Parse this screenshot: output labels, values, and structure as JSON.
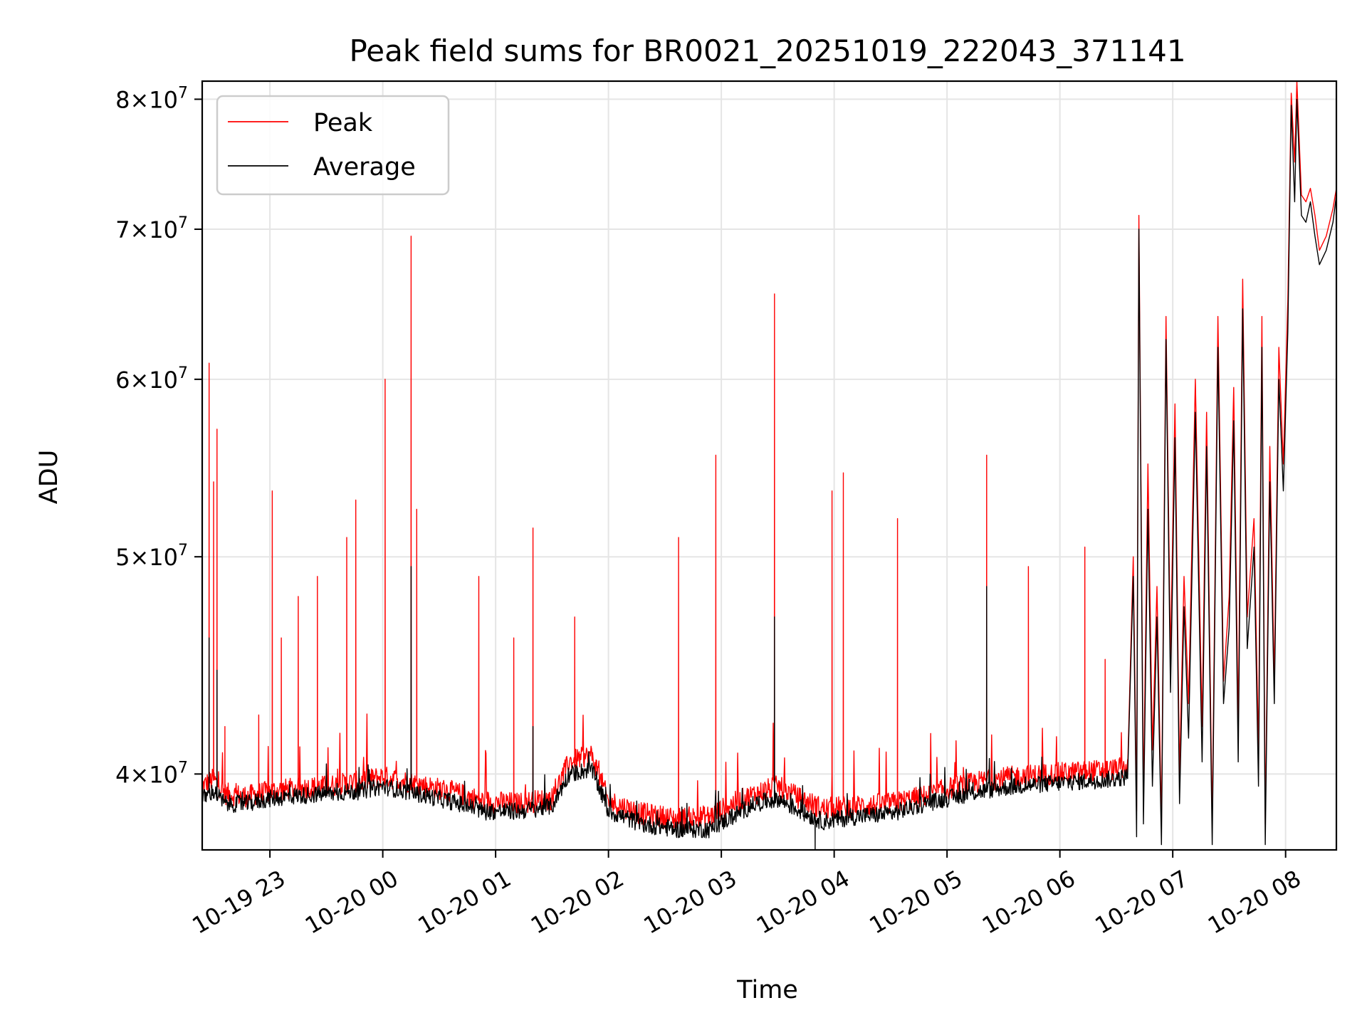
{
  "chart_data": {
    "type": "line",
    "title": "Peak field sums for BR0021_20251019_222043_371141",
    "xlabel": "Time",
    "ylabel": "ADU",
    "yscale": "log",
    "ylim": [
      37000000,
      81500000
    ],
    "xlim_hours": [
      22.4,
      32.45
    ],
    "grid": true,
    "legend_position": "upper-left",
    "x_ticks": [
      {
        "hour": 23,
        "label": "10-19 23"
      },
      {
        "hour": 24,
        "label": "10-20 00"
      },
      {
        "hour": 25,
        "label": "10-20 01"
      },
      {
        "hour": 26,
        "label": "10-20 02"
      },
      {
        "hour": 27,
        "label": "10-20 03"
      },
      {
        "hour": 28,
        "label": "10-20 04"
      },
      {
        "hour": 29,
        "label": "10-20 05"
      },
      {
        "hour": 30,
        "label": "10-20 06"
      },
      {
        "hour": 31,
        "label": "10-20 07"
      },
      {
        "hour": 32,
        "label": "10-20 08"
      }
    ],
    "y_ticks": [
      {
        "value": 40000000,
        "mantissa": "4",
        "exponent": "7"
      },
      {
        "value": 50000000,
        "mantissa": "5",
        "exponent": "7"
      },
      {
        "value": 60000000,
        "mantissa": "6",
        "exponent": "7"
      },
      {
        "value": 70000000,
        "mantissa": "7",
        "exponent": "7"
      },
      {
        "value": 80000000,
        "mantissa": "8",
        "exponent": "7"
      }
    ],
    "series": [
      {
        "name": "Peak",
        "color": "#ff0000",
        "x_hours": [
          22.4,
          22.5,
          22.6,
          22.8,
          23.0,
          23.2,
          23.5,
          23.8,
          24.0,
          24.3,
          24.6,
          24.9,
          25.2,
          25.5,
          25.65,
          25.85,
          26.0,
          26.3,
          26.6,
          26.9,
          27.1,
          27.3,
          27.5,
          27.7,
          27.9,
          28.2,
          28.5,
          28.8,
          29.0,
          29.3,
          29.6,
          29.9,
          30.2,
          30.5,
          30.6
        ],
        "values": [
          39500000,
          39800000,
          39200000,
          39100000,
          39300000,
          39400000,
          39500000,
          39700000,
          39900000,
          39600000,
          39300000,
          38900000,
          38800000,
          39000000,
          40500000,
          40800000,
          38900000,
          38400000,
          38200000,
          38300000,
          38800000,
          39200000,
          39500000,
          39000000,
          38600000,
          38700000,
          38800000,
          39100000,
          39400000,
          39700000,
          39900000,
          40000000,
          40100000,
          40200000,
          40300000
        ],
        "spikes": [
          {
            "x": 22.46,
            "value": 61000000
          },
          {
            "x": 22.5,
            "value": 54000000
          },
          {
            "x": 22.53,
            "value": 57000000
          },
          {
            "x": 22.6,
            "value": 42000000
          },
          {
            "x": 22.9,
            "value": 42500000
          },
          {
            "x": 23.02,
            "value": 53500000
          },
          {
            "x": 23.1,
            "value": 46000000
          },
          {
            "x": 23.25,
            "value": 48000000
          },
          {
            "x": 23.42,
            "value": 49000000
          },
          {
            "x": 23.68,
            "value": 51000000
          },
          {
            "x": 23.76,
            "value": 53000000
          },
          {
            "x": 24.02,
            "value": 60000000
          },
          {
            "x": 24.25,
            "value": 69500000
          },
          {
            "x": 24.3,
            "value": 52500000
          },
          {
            "x": 24.85,
            "value": 49000000
          },
          {
            "x": 25.16,
            "value": 46000000
          },
          {
            "x": 25.33,
            "value": 51500000
          },
          {
            "x": 25.7,
            "value": 47000000
          },
          {
            "x": 26.62,
            "value": 51000000
          },
          {
            "x": 26.95,
            "value": 55500000
          },
          {
            "x": 27.47,
            "value": 65500000
          },
          {
            "x": 27.98,
            "value": 53500000
          },
          {
            "x": 28.08,
            "value": 54500000
          },
          {
            "x": 28.56,
            "value": 52000000
          },
          {
            "x": 29.35,
            "value": 55500000
          },
          {
            "x": 29.72,
            "value": 49500000
          },
          {
            "x": 30.22,
            "value": 50500000
          },
          {
            "x": 30.4,
            "value": 45000000
          }
        ],
        "late": [
          [
            30.6,
            40200000
          ],
          [
            30.65,
            50000000
          ],
          [
            30.68,
            38500000
          ],
          [
            30.7,
            71000000
          ],
          [
            30.74,
            39000000
          ],
          [
            30.78,
            55000000
          ],
          [
            30.82,
            41000000
          ],
          [
            30.86,
            48500000
          ],
          [
            30.9,
            38000000
          ],
          [
            30.94,
            64000000
          ],
          [
            30.98,
            45000000
          ],
          [
            31.02,
            58500000
          ],
          [
            31.06,
            40000000
          ],
          [
            31.1,
            49000000
          ],
          [
            31.14,
            43000000
          ],
          [
            31.2,
            60000000
          ],
          [
            31.26,
            42000000
          ],
          [
            31.3,
            58000000
          ],
          [
            31.35,
            38000000
          ],
          [
            31.4,
            64000000
          ],
          [
            31.45,
            44000000
          ],
          [
            31.5,
            48000000
          ],
          [
            31.54,
            59500000
          ],
          [
            31.58,
            42000000
          ],
          [
            31.62,
            66500000
          ],
          [
            31.66,
            47000000
          ],
          [
            31.72,
            52000000
          ],
          [
            31.76,
            41000000
          ],
          [
            31.79,
            64000000
          ],
          [
            31.82,
            38000000
          ],
          [
            31.86,
            56000000
          ],
          [
            31.9,
            44000000
          ],
          [
            31.94,
            62000000
          ],
          [
            31.98,
            55000000
          ],
          [
            32.02,
            65000000
          ],
          [
            32.05,
            80500000
          ],
          [
            32.08,
            75000000
          ],
          [
            32.1,
            81500000
          ],
          [
            32.14,
            72500000
          ],
          [
            32.18,
            72000000
          ],
          [
            32.22,
            73000000
          ],
          [
            32.26,
            71000000
          ],
          [
            32.3,
            68500000
          ],
          [
            32.36,
            69500000
          ],
          [
            32.42,
            71500000
          ],
          [
            32.45,
            73000000
          ]
        ]
      },
      {
        "name": "Average",
        "color": "#000000",
        "x_hours": [
          22.4,
          22.5,
          22.6,
          22.8,
          23.0,
          23.2,
          23.5,
          23.8,
          24.0,
          24.3,
          24.6,
          24.9,
          25.2,
          25.5,
          25.65,
          25.85,
          26.0,
          26.3,
          26.6,
          26.9,
          27.1,
          27.3,
          27.5,
          27.7,
          27.9,
          28.2,
          28.5,
          28.8,
          29.0,
          29.3,
          29.6,
          29.9,
          30.2,
          30.5,
          30.6
        ],
        "values": [
          39000000,
          39300000,
          38800000,
          38800000,
          39000000,
          39100000,
          39200000,
          39300000,
          39500000,
          39200000,
          38900000,
          38500000,
          38500000,
          38700000,
          40000000,
          40200000,
          38500000,
          38000000,
          37800000,
          37800000,
          38300000,
          38800000,
          39000000,
          38500000,
          38100000,
          38300000,
          38400000,
          38800000,
          39000000,
          39300000,
          39500000,
          39600000,
          39700000,
          39800000,
          39900000
        ],
        "spikes": [
          {
            "x": 22.46,
            "value": 46000000
          },
          {
            "x": 22.53,
            "value": 44500000
          },
          {
            "x": 24.25,
            "value": 49500000
          },
          {
            "x": 25.33,
            "value": 42000000
          },
          {
            "x": 27.47,
            "value": 47000000
          },
          {
            "x": 27.83,
            "value": 37000000
          },
          {
            "x": 29.35,
            "value": 48500000
          }
        ],
        "late": [
          [
            30.6,
            39900000
          ],
          [
            30.65,
            49000000
          ],
          [
            30.68,
            37500000
          ],
          [
            30.7,
            70000000
          ],
          [
            30.74,
            38000000
          ],
          [
            30.78,
            52500000
          ],
          [
            30.82,
            39500000
          ],
          [
            30.86,
            47000000
          ],
          [
            30.9,
            37200000
          ],
          [
            30.94,
            62500000
          ],
          [
            30.98,
            43500000
          ],
          [
            31.02,
            56500000
          ],
          [
            31.06,
            38800000
          ],
          [
            31.1,
            47500000
          ],
          [
            31.14,
            41500000
          ],
          [
            31.2,
            58000000
          ],
          [
            31.26,
            40500000
          ],
          [
            31.3,
            56000000
          ],
          [
            31.35,
            37200000
          ],
          [
            31.4,
            62000000
          ],
          [
            31.45,
            43000000
          ],
          [
            31.5,
            46500000
          ],
          [
            31.54,
            57500000
          ],
          [
            31.58,
            40500000
          ],
          [
            31.62,
            64500000
          ],
          [
            31.66,
            45500000
          ],
          [
            31.72,
            50500000
          ],
          [
            31.76,
            39500000
          ],
          [
            31.79,
            62000000
          ],
          [
            31.82,
            37200000
          ],
          [
            31.86,
            54000000
          ],
          [
            31.9,
            43000000
          ],
          [
            31.94,
            60000000
          ],
          [
            31.98,
            53500000
          ],
          [
            32.02,
            63000000
          ],
          [
            32.05,
            79500000
          ],
          [
            32.08,
            72000000
          ],
          [
            32.1,
            80000000
          ],
          [
            32.14,
            71000000
          ],
          [
            32.18,
            70500000
          ],
          [
            32.22,
            72000000
          ],
          [
            32.26,
            69500000
          ],
          [
            32.3,
            67500000
          ],
          [
            32.36,
            68500000
          ],
          [
            32.42,
            70500000
          ],
          [
            32.45,
            72500000
          ]
        ]
      }
    ]
  }
}
